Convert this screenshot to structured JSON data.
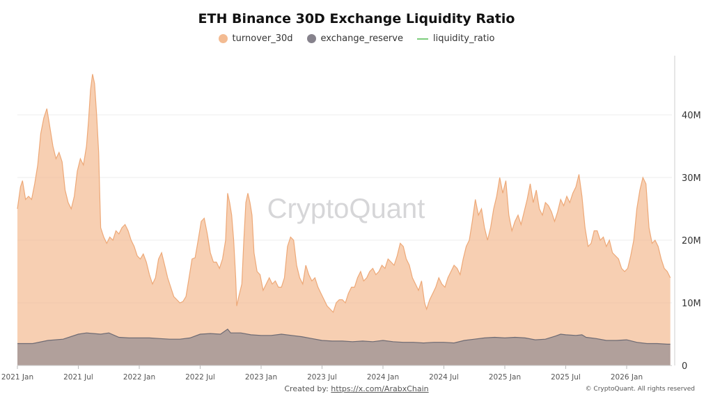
{
  "chart_data": {
    "type": "area",
    "title": "ETH Binance 30D Exchange Liquidity Ratio",
    "legend": [
      {
        "name": "turnover_30d",
        "color": "#f3bb92",
        "marker": "dot"
      },
      {
        "name": "exchange_reserve",
        "color": "#86828c",
        "marker": "dot"
      },
      {
        "name": "liquidity_ratio",
        "color": "#7ccd7c",
        "marker": "line"
      }
    ],
    "x_ticks": [
      "2021 Jan",
      "2021 Jul",
      "2022 Jan",
      "2022 Jul",
      "2023 Jan",
      "2023 Jul",
      "2024 Jan",
      "2024 Jul",
      "2025 Jan",
      "2025 Jul",
      "2026 Jan"
    ],
    "x_range_months": [
      0,
      62
    ],
    "y_ticks": [
      "0",
      "10M",
      "20M",
      "30M",
      "40M"
    ],
    "y_range_millions": [
      0,
      49
    ],
    "x_unit": "months since 2021 Jan",
    "y_unit": "millions ETH",
    "series": [
      {
        "name": "turnover_30d",
        "color": "#f3bb92",
        "points": [
          [
            0,
            25
          ],
          [
            0.3,
            28.5
          ],
          [
            0.5,
            29.5
          ],
          [
            0.8,
            26.5
          ],
          [
            1.1,
            27
          ],
          [
            1.4,
            26.5
          ],
          [
            1.7,
            29
          ],
          [
            2,
            32
          ],
          [
            2.3,
            37
          ],
          [
            2.6,
            39.5
          ],
          [
            2.9,
            41
          ],
          [
            3.2,
            38
          ],
          [
            3.5,
            35
          ],
          [
            3.8,
            33
          ],
          [
            4.1,
            34
          ],
          [
            4.4,
            32.5
          ],
          [
            4.7,
            28
          ],
          [
            5,
            26
          ],
          [
            5.3,
            25
          ],
          [
            5.6,
            27
          ],
          [
            5.9,
            31
          ],
          [
            6.2,
            33
          ],
          [
            6.5,
            32
          ],
          [
            6.8,
            35
          ],
          [
            7,
            39
          ],
          [
            7.2,
            44
          ],
          [
            7.4,
            46.5
          ],
          [
            7.6,
            45
          ],
          [
            7.8,
            40
          ],
          [
            8,
            34
          ],
          [
            8.1,
            28
          ],
          [
            8.2,
            22
          ],
          [
            8.5,
            20.5
          ],
          [
            8.8,
            19.5
          ],
          [
            9.1,
            20.5
          ],
          [
            9.4,
            20
          ],
          [
            9.7,
            21.5
          ],
          [
            10,
            21
          ],
          [
            10.3,
            22
          ],
          [
            10.6,
            22.5
          ],
          [
            10.9,
            21.5
          ],
          [
            11.2,
            20
          ],
          [
            11.5,
            19
          ],
          [
            11.8,
            17.5
          ],
          [
            12.1,
            17
          ],
          [
            12.4,
            17.8
          ],
          [
            12.7,
            16.5
          ],
          [
            13,
            14.5
          ],
          [
            13.3,
            13
          ],
          [
            13.6,
            14
          ],
          [
            13.9,
            17
          ],
          [
            14.2,
            18
          ],
          [
            14.5,
            16
          ],
          [
            14.8,
            14
          ],
          [
            15.1,
            12.5
          ],
          [
            15.4,
            11
          ],
          [
            15.7,
            10.5
          ],
          [
            16,
            10
          ],
          [
            16.3,
            10.2
          ],
          [
            16.6,
            11
          ],
          [
            16.9,
            14
          ],
          [
            17.2,
            17
          ],
          [
            17.5,
            17.2
          ],
          [
            17.8,
            20
          ],
          [
            18.1,
            23
          ],
          [
            18.4,
            23.5
          ],
          [
            18.7,
            21
          ],
          [
            19,
            18
          ],
          [
            19.3,
            16.5
          ],
          [
            19.6,
            16.5
          ],
          [
            19.9,
            15.5
          ],
          [
            20.2,
            17
          ],
          [
            20.5,
            20
          ],
          [
            20.7,
            27.5
          ],
          [
            20.9,
            26
          ],
          [
            21.1,
            24
          ],
          [
            21.3,
            20
          ],
          [
            21.5,
            14
          ],
          [
            21.6,
            9.5
          ],
          [
            21.8,
            11
          ],
          [
            22.1,
            13
          ],
          [
            22.3,
            20
          ],
          [
            22.5,
            26
          ],
          [
            22.7,
            27.5
          ],
          [
            22.9,
            26
          ],
          [
            23.1,
            24
          ],
          [
            23.3,
            18
          ],
          [
            23.6,
            15
          ],
          [
            23.9,
            14.5
          ],
          [
            24.2,
            12
          ],
          [
            24.5,
            13
          ],
          [
            24.8,
            14
          ],
          [
            25.1,
            13
          ],
          [
            25.4,
            13.5
          ],
          [
            25.7,
            12.5
          ],
          [
            26,
            12.5
          ],
          [
            26.3,
            14
          ],
          [
            26.6,
            19
          ],
          [
            26.9,
            20.5
          ],
          [
            27.2,
            20
          ],
          [
            27.5,
            16
          ],
          [
            27.8,
            14
          ],
          [
            28.1,
            13
          ],
          [
            28.4,
            16
          ],
          [
            28.7,
            14.5
          ],
          [
            29,
            13.5
          ],
          [
            29.3,
            14
          ],
          [
            29.6,
            12.5
          ],
          [
            29.9,
            11.5
          ],
          [
            30.2,
            10.5
          ],
          [
            30.5,
            9.5
          ],
          [
            30.8,
            9
          ],
          [
            31.1,
            8.5
          ],
          [
            31.4,
            10
          ],
          [
            31.7,
            10.5
          ],
          [
            32,
            10.5
          ],
          [
            32.3,
            10
          ],
          [
            32.6,
            11.5
          ],
          [
            32.9,
            12.5
          ],
          [
            33.2,
            12.5
          ],
          [
            33.5,
            14
          ],
          [
            33.8,
            15
          ],
          [
            34.1,
            13.5
          ],
          [
            34.4,
            14
          ],
          [
            34.7,
            15
          ],
          [
            35,
            15.5
          ],
          [
            35.3,
            14.5
          ],
          [
            35.6,
            15
          ],
          [
            35.9,
            16
          ],
          [
            36.2,
            15.5
          ],
          [
            36.5,
            17
          ],
          [
            36.8,
            16.5
          ],
          [
            37.1,
            16
          ],
          [
            37.4,
            17.5
          ],
          [
            37.7,
            19.5
          ],
          [
            38,
            19
          ],
          [
            38.3,
            17
          ],
          [
            38.6,
            16
          ],
          [
            38.9,
            14
          ],
          [
            39.2,
            13
          ],
          [
            39.5,
            12
          ],
          [
            39.8,
            13.5
          ],
          [
            40.1,
            10
          ],
          [
            40.3,
            9
          ],
          [
            40.6,
            10.5
          ],
          [
            40.9,
            11.5
          ],
          [
            41.2,
            12.5
          ],
          [
            41.5,
            14
          ],
          [
            41.8,
            13
          ],
          [
            42.1,
            12.5
          ],
          [
            42.4,
            14
          ],
          [
            42.7,
            15
          ],
          [
            43,
            16
          ],
          [
            43.3,
            15.5
          ],
          [
            43.6,
            14.5
          ],
          [
            43.9,
            17
          ],
          [
            44.2,
            19
          ],
          [
            44.5,
            20
          ],
          [
            44.8,
            23
          ],
          [
            45.1,
            26.5
          ],
          [
            45.4,
            24
          ],
          [
            45.7,
            25
          ],
          [
            46,
            22
          ],
          [
            46.3,
            20
          ],
          [
            46.6,
            22
          ],
          [
            46.9,
            25
          ],
          [
            47.2,
            27
          ],
          [
            47.5,
            30
          ],
          [
            47.8,
            27.5
          ],
          [
            48.1,
            29.5
          ],
          [
            48.4,
            24
          ],
          [
            48.7,
            21.5
          ],
          [
            49,
            23
          ],
          [
            49.3,
            24
          ],
          [
            49.6,
            22.5
          ],
          [
            49.9,
            24.5
          ],
          [
            50.2,
            26.5
          ],
          [
            50.5,
            29
          ],
          [
            50.8,
            26
          ],
          [
            51.1,
            28
          ],
          [
            51.4,
            25
          ],
          [
            51.7,
            24
          ],
          [
            52,
            26
          ],
          [
            52.3,
            25.5
          ],
          [
            52.6,
            24.5
          ],
          [
            52.9,
            23
          ],
          [
            53.2,
            24.5
          ],
          [
            53.5,
            26.5
          ],
          [
            53.8,
            25.5
          ],
          [
            54.1,
            27
          ],
          [
            54.4,
            26
          ],
          [
            54.7,
            27.5
          ],
          [
            55,
            28.5
          ],
          [
            55.3,
            30.5
          ],
          [
            55.6,
            27
          ],
          [
            55.9,
            22
          ],
          [
            56.2,
            19
          ],
          [
            56.5,
            19.5
          ],
          [
            56.8,
            21.5
          ],
          [
            57.1,
            21.5
          ],
          [
            57.4,
            20
          ],
          [
            57.7,
            20.5
          ],
          [
            58,
            19
          ],
          [
            58.3,
            20
          ],
          [
            58.6,
            18
          ],
          [
            58.9,
            17.5
          ],
          [
            59.2,
            17
          ],
          [
            59.5,
            15.5
          ],
          [
            59.8,
            15
          ],
          [
            60.1,
            15.5
          ],
          [
            60.4,
            17.5
          ],
          [
            60.7,
            20
          ],
          [
            61,
            25
          ],
          [
            61.3,
            28
          ],
          [
            61.6,
            30
          ],
          [
            61.9,
            29
          ],
          [
            62.2,
            22
          ],
          [
            62.5,
            19.5
          ],
          [
            62.8,
            20
          ],
          [
            63.1,
            19
          ],
          [
            63.4,
            17
          ],
          [
            63.7,
            15.5
          ],
          [
            64,
            15
          ],
          [
            64.3,
            14
          ]
        ]
      },
      {
        "name": "exchange_reserve",
        "color": "#86828c",
        "points": [
          [
            0,
            3.5
          ],
          [
            1.5,
            3.5
          ],
          [
            3,
            4
          ],
          [
            4.5,
            4.2
          ],
          [
            6,
            5
          ],
          [
            6.8,
            5.2
          ],
          [
            7.5,
            5.1
          ],
          [
            8.2,
            5
          ],
          [
            9,
            5.2
          ],
          [
            10,
            4.5
          ],
          [
            11,
            4.4
          ],
          [
            12,
            4.4
          ],
          [
            13,
            4.4
          ],
          [
            14,
            4.3
          ],
          [
            15,
            4.2
          ],
          [
            16,
            4.2
          ],
          [
            17,
            4.4
          ],
          [
            18,
            5
          ],
          [
            19,
            5.1
          ],
          [
            20,
            5
          ],
          [
            20.7,
            5.8
          ],
          [
            21,
            5.2
          ],
          [
            22,
            5.2
          ],
          [
            23,
            4.9
          ],
          [
            24,
            4.8
          ],
          [
            25,
            4.8
          ],
          [
            26,
            5
          ],
          [
            27,
            4.8
          ],
          [
            28,
            4.6
          ],
          [
            29,
            4.3
          ],
          [
            30,
            4
          ],
          [
            31,
            3.9
          ],
          [
            32,
            3.9
          ],
          [
            33,
            3.8
          ],
          [
            34,
            3.9
          ],
          [
            35,
            3.8
          ],
          [
            36,
            4
          ],
          [
            37,
            3.8
          ],
          [
            38,
            3.7
          ],
          [
            39,
            3.7
          ],
          [
            40,
            3.6
          ],
          [
            41,
            3.7
          ],
          [
            42,
            3.7
          ],
          [
            43,
            3.6
          ],
          [
            44,
            4
          ],
          [
            45,
            4.2
          ],
          [
            46,
            4.4
          ],
          [
            47,
            4.5
          ],
          [
            48,
            4.4
          ],
          [
            49,
            4.5
          ],
          [
            50,
            4.4
          ],
          [
            51,
            4.1
          ],
          [
            52,
            4.2
          ],
          [
            53,
            4.7
          ],
          [
            53.5,
            5
          ],
          [
            54,
            4.9
          ],
          [
            55,
            4.8
          ],
          [
            55.6,
            4.9
          ],
          [
            56,
            4.5
          ],
          [
            57,
            4.3
          ],
          [
            58,
            4
          ],
          [
            59,
            4
          ],
          [
            60,
            4.1
          ],
          [
            61,
            3.7
          ],
          [
            62,
            3.5
          ],
          [
            63,
            3.5
          ],
          [
            64,
            3.4
          ],
          [
            64.3,
            3.4
          ]
        ]
      }
    ],
    "watermark": "CryptoQuant"
  },
  "footer": {
    "created_by_label": "Created by:",
    "created_by_link": "https://x.com/ArabxChain",
    "copyright": "© CryptoQuant. All rights reserved"
  }
}
